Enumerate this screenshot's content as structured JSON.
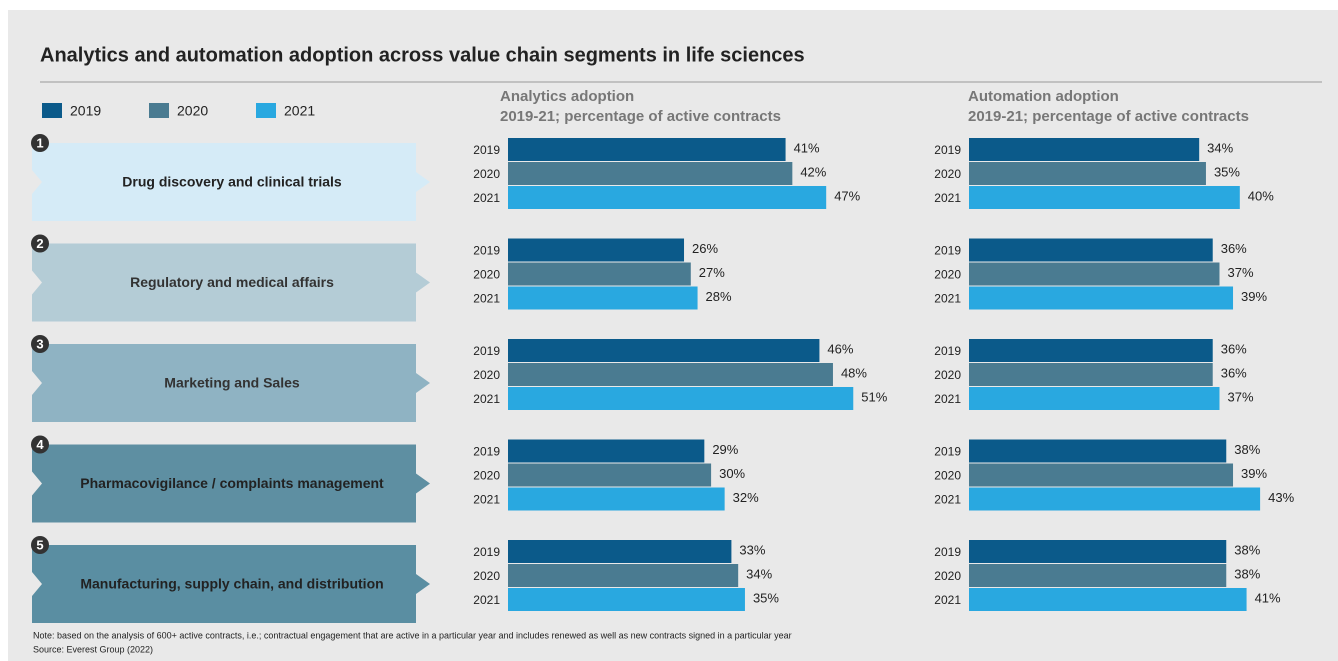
{
  "title": "Analytics and automation adoption across value chain segments in life sciences",
  "note": "Note: based on the analysis of 600+ active contracts, i.e.; contractual engagement that are active in a particular year and includes renewed as well as new contracts signed in a particular year",
  "source": "Source: Everest Group (2022)",
  "segment_numbers": [
    1,
    2,
    3,
    4,
    5
  ],
  "chart_data": [
    {
      "type": "bar",
      "orientation": "horizontal",
      "title": "Analytics adoption",
      "subtitle": "2019-21; percentage of active contracts",
      "categories": [
        "Drug discovery and clinical trials",
        "Regulatory and medical affairs",
        "Marketing and Sales",
        "Pharmacovigilance / complaints management",
        "Manufacturing, supply chain, and distribution"
      ],
      "series": [
        {
          "name": "2019",
          "color": "#0b5a8a",
          "values": [
            41,
            26,
            46,
            29,
            33
          ],
          "value_labels": [
            "41%",
            "26%",
            "46%",
            "29%",
            "33%"
          ]
        },
        {
          "name": "2020",
          "color": "#4a7b91",
          "values": [
            42,
            27,
            48,
            30,
            34
          ],
          "value_labels": [
            "42%",
            "27%",
            "48%",
            "30%",
            "34%"
          ]
        },
        {
          "name": "2021",
          "color": "#29a8e0",
          "values": [
            47,
            28,
            51,
            32,
            35
          ],
          "value_labels": [
            "47%",
            "28%",
            "51%",
            "32%",
            "35%"
          ]
        }
      ]
    },
    {
      "type": "bar",
      "orientation": "horizontal",
      "title": "Automation adoption",
      "subtitle": "2019-21; percentage of active contracts",
      "series": [
        {
          "name": "2019",
          "color": "#0b5a8a",
          "values": [
            34,
            36,
            36,
            38,
            38
          ],
          "value_labels": [
            "34%",
            "36%",
            "36%",
            "38%",
            "38%"
          ]
        },
        {
          "name": "2020",
          "color": "#4a7b91",
          "values": [
            35,
            37,
            36,
            39,
            38
          ],
          "value_labels": [
            "35%",
            "37%",
            "36%",
            "39%",
            "38%"
          ]
        },
        {
          "name": "2021",
          "color": "#29a8e0",
          "values": [
            40,
            39,
            37,
            43,
            41
          ],
          "value_labels": [
            "40%",
            "39%",
            "37%",
            "43%",
            "41%"
          ]
        }
      ]
    }
  ]
}
